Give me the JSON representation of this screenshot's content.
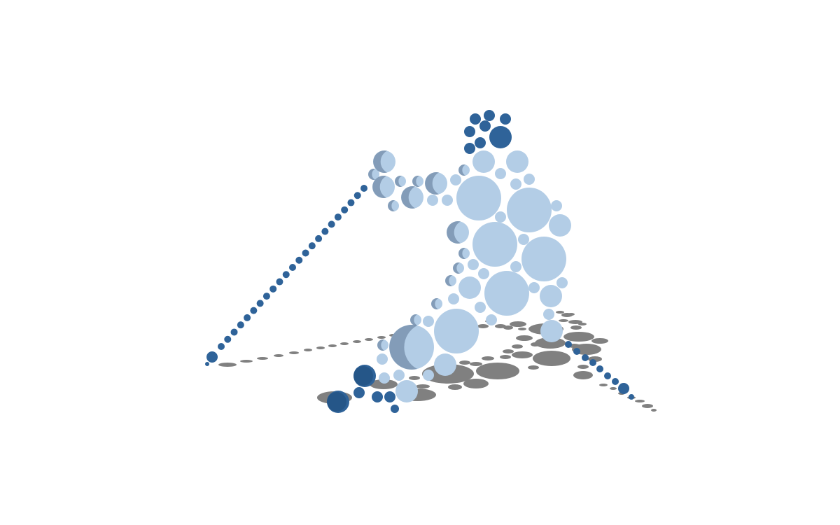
{
  "colors": {
    "background": "#ffffff",
    "dark_bubble": "#2f6399",
    "dark_bubble_deep": "#1f4e7d",
    "light_bubble": "#b3cde6",
    "shadow": "#808080"
  },
  "scene": {
    "description_type": "3d-bubble-figure-with-ground-shadows",
    "groups": [
      {
        "name": "head-cluster",
        "tone": "dark"
      },
      {
        "name": "torso-cluster",
        "tone": "light"
      },
      {
        "name": "left-arm-cluster",
        "tone": "light"
      },
      {
        "name": "left-diagonal-trail",
        "tone": "dark"
      },
      {
        "name": "lower-left-cluster",
        "tone": "dark"
      },
      {
        "name": "right-diagonal-trail",
        "tone": "dark"
      },
      {
        "name": "ground-shadows",
        "tone": "shadow"
      }
    ]
  }
}
